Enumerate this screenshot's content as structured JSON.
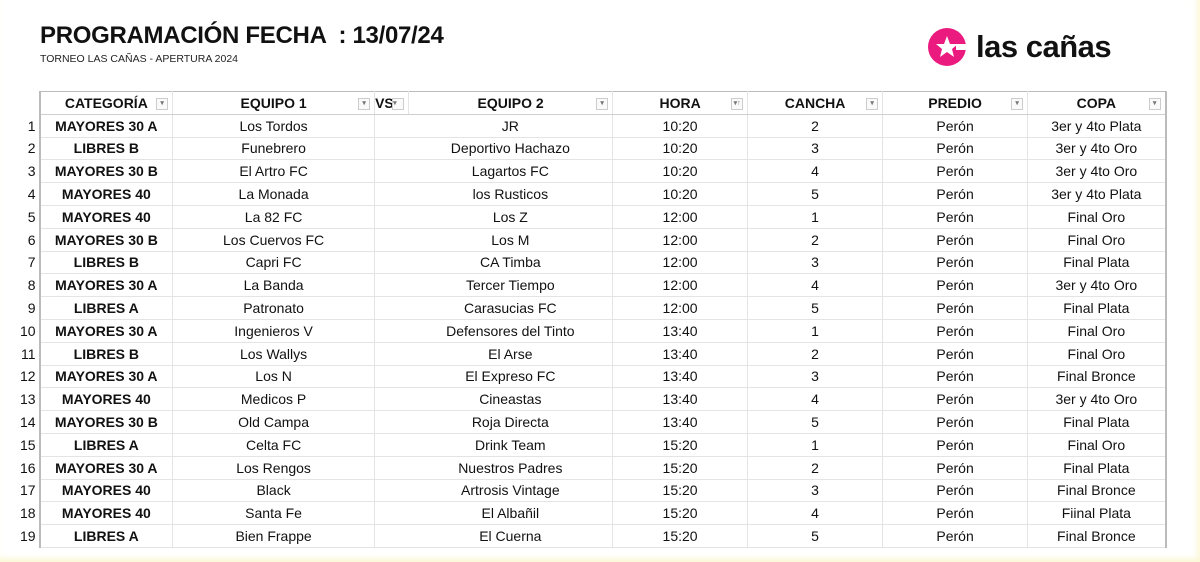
{
  "header": {
    "title": "PROGRAMACIÓN FECHA  : 13/07/24",
    "subtitle": "TORNEO LAS CAÑAS - APERTURA 2024",
    "logo_text": "las cañas",
    "brand_color": "#ea1a7f"
  },
  "table": {
    "columns": [
      "CATEGORÍA",
      "EQUIPO  1",
      "VS",
      "EQUIPO  2",
      "HORA",
      "CANCHA",
      "PREDIO",
      "COPA"
    ],
    "rows": [
      [
        "1",
        "MAYORES  30 A",
        "Los Tordos",
        "",
        "JR",
        "10:20",
        "2",
        "Perón",
        "3er y 4to Plata"
      ],
      [
        "2",
        "LIBRES B",
        "Funebrero",
        "",
        "Deportivo Hachazo",
        "10:20",
        "3",
        "Perón",
        "3er y 4to Oro"
      ],
      [
        "3",
        "MAYORES  30 B",
        "El Artro FC",
        "",
        "Lagartos FC",
        "10:20",
        "4",
        "Perón",
        "3er y 4to Oro"
      ],
      [
        "4",
        "MAYORES 40",
        "La Monada",
        "",
        "los Rusticos",
        "10:20",
        "5",
        "Perón",
        "3er y 4to Plata"
      ],
      [
        "5",
        "MAYORES 40",
        "La 82 FC",
        "",
        "Los Z",
        "12:00",
        "1",
        "Perón",
        "Final Oro"
      ],
      [
        "6",
        "MAYORES  30 B",
        "Los Cuervos FC",
        "",
        "Los M",
        "12:00",
        "2",
        "Perón",
        "Final Oro"
      ],
      [
        "7",
        "LIBRES B",
        "Capri FC",
        "",
        "CA Timba",
        "12:00",
        "3",
        "Perón",
        "Final Plata"
      ],
      [
        "8",
        "MAYORES  30 A",
        "La Banda",
        "",
        "Tercer Tiempo",
        "12:00",
        "4",
        "Perón",
        "3er y 4to Oro"
      ],
      [
        "9",
        "LIBRES A",
        "Patronato",
        "",
        "Carasucias FC",
        "12:00",
        "5",
        "Perón",
        "Final Plata"
      ],
      [
        "10",
        "MAYORES  30 A",
        "Ingenieros V",
        "",
        "Defensores del Tinto",
        "13:40",
        "1",
        "Perón",
        "Final Oro"
      ],
      [
        "11",
        "LIBRES B",
        "Los Wallys",
        "",
        "El Arse",
        "13:40",
        "2",
        "Perón",
        "Final Oro"
      ],
      [
        "12",
        "MAYORES  30 A",
        "Los N",
        "",
        "El Expreso FC",
        "13:40",
        "3",
        "Perón",
        "Final Bronce"
      ],
      [
        "13",
        "MAYORES 40",
        "Medicos P",
        "",
        "Cineastas",
        "13:40",
        "4",
        "Perón",
        "3er y 4to Oro"
      ],
      [
        "14",
        "MAYORES  30 B",
        "Old Campa",
        "",
        "Roja Directa",
        "13:40",
        "5",
        "Perón",
        "Final Plata"
      ],
      [
        "15",
        "LIBRES A",
        "Celta FC",
        "",
        "Drink Team",
        "15:20",
        "1",
        "Perón",
        "Final Oro"
      ],
      [
        "16",
        "MAYORES  30 A",
        "Los Rengos",
        "",
        "Nuestros Padres",
        "15:20",
        "2",
        "Perón",
        "Final Plata"
      ],
      [
        "17",
        "MAYORES 40",
        "Black",
        "",
        "Artrosis Vintage",
        "15:20",
        "3",
        "Perón",
        "Final Bronce"
      ],
      [
        "18",
        "MAYORES 40",
        "Santa Fe",
        "",
        "El Albañil",
        "15:20",
        "4",
        "Perón",
        "Fiinal Plata"
      ],
      [
        "19",
        "LIBRES A",
        "Bien Frappe",
        "",
        "El Cuerna",
        "15:20",
        "5",
        "Perón",
        "Final Bronce"
      ]
    ]
  }
}
